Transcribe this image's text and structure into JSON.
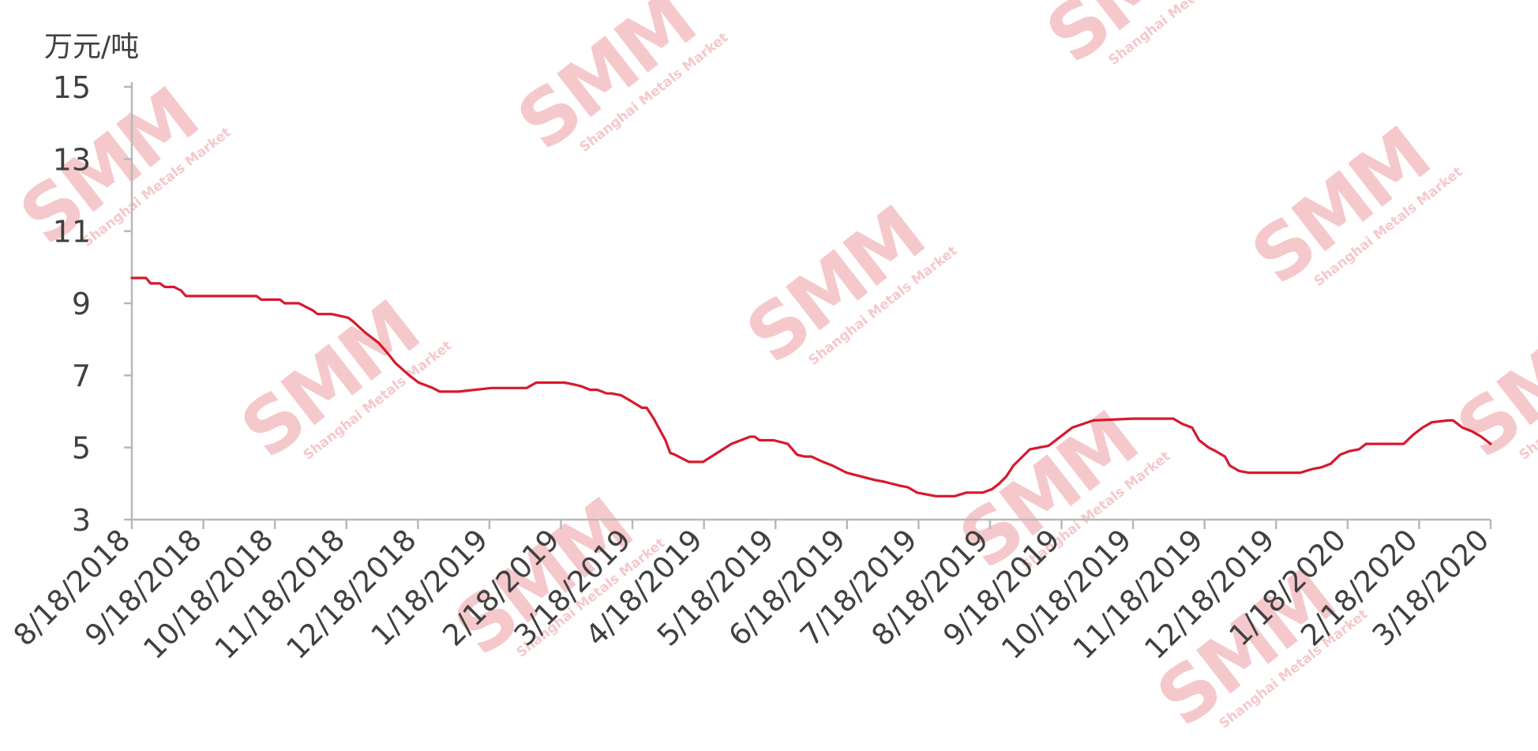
{
  "chart_data": {
    "type": "line",
    "ylabel": "万元/吨",
    "ylim": [
      3,
      15
    ],
    "yticks": [
      3,
      5,
      7,
      9,
      11,
      13,
      15
    ],
    "xlim": [
      "2018-08-18",
      "2020-03-18"
    ],
    "xtick_labels": [
      "8/18/2018",
      "9/18/2018",
      "10/18/2018",
      "11/18/2018",
      "12/18/2018",
      "1/18/2019",
      "2/18/2019",
      "3/18/2019",
      "4/18/2019",
      "5/18/2019",
      "6/18/2019",
      "7/18/2019",
      "8/18/2019",
      "9/18/2019",
      "10/18/2019",
      "11/18/2019",
      "12/18/2019",
      "1/18/2020",
      "2/18/2020",
      "3/18/2020"
    ],
    "grid": false,
    "legend": "none",
    "line_color": "#d7192d",
    "series": [
      {
        "x": [
          "2018-08-18",
          "2018-08-24",
          "2018-08-26",
          "2018-08-30",
          "2018-09-01",
          "2018-09-05",
          "2018-09-08",
          "2018-09-10",
          "2018-10-10",
          "2018-10-12",
          "2018-10-20",
          "2018-10-22",
          "2018-10-28",
          "2018-10-31",
          "2018-11-03",
          "2018-11-05",
          "2018-11-11",
          "2018-11-18",
          "2018-11-20",
          "2018-11-25",
          "2018-12-01",
          "2018-12-05",
          "2018-12-08",
          "2018-12-14",
          "2018-12-18",
          "2018-12-24",
          "2018-12-27",
          "2019-01-04",
          "2019-01-18",
          "2019-02-02",
          "2019-02-06",
          "2019-02-10",
          "2019-02-12",
          "2019-02-18",
          "2019-02-22",
          "2019-02-25",
          "2019-03-01",
          "2019-03-04",
          "2019-03-08",
          "2019-03-10",
          "2019-03-14",
          "2019-03-18",
          "2019-03-23",
          "2019-03-25",
          "2019-03-28",
          "2019-04-02",
          "2019-04-04",
          "2019-04-06",
          "2019-04-12",
          "2019-04-18",
          "2019-04-30",
          "2019-05-08",
          "2019-05-10",
          "2019-05-12",
          "2019-05-18",
          "2019-05-24",
          "2019-05-28",
          "2019-05-31",
          "2019-06-03",
          "2019-06-08",
          "2019-06-12",
          "2019-06-18",
          "2019-06-24",
          "2019-06-30",
          "2019-07-04",
          "2019-07-10",
          "2019-07-14",
          "2019-07-18",
          "2019-07-26",
          "2019-08-03",
          "2019-08-08",
          "2019-08-12",
          "2019-08-15",
          "2019-08-19",
          "2019-08-22",
          "2019-08-25",
          "2019-08-28",
          "2019-09-04",
          "2019-09-08",
          "2019-09-12",
          "2019-09-15",
          "2019-09-18",
          "2019-09-22",
          "2019-10-01",
          "2019-10-18",
          "2019-10-26",
          "2019-10-30",
          "2019-11-04",
          "2019-11-08",
          "2019-11-12",
          "2019-11-15",
          "2019-11-19",
          "2019-11-22",
          "2019-11-26",
          "2019-11-28",
          "2019-12-02",
          "2019-12-06",
          "2019-12-18",
          "2019-12-28",
          "2020-01-02",
          "2020-01-06",
          "2020-01-10",
          "2020-01-14",
          "2020-01-18",
          "2020-01-22",
          "2020-01-25",
          "2020-02-02",
          "2020-02-07",
          "2020-02-10",
          "2020-02-14",
          "2020-02-18",
          "2020-02-22",
          "2020-02-29",
          "2020-03-02",
          "2020-03-06",
          "2020-03-10",
          "2020-03-14",
          "2020-03-18"
        ],
        "y": [
          9.7,
          9.7,
          9.55,
          9.55,
          9.45,
          9.45,
          9.35,
          9.2,
          9.2,
          9.1,
          9.1,
          9.0,
          9.0,
          8.9,
          8.8,
          8.7,
          8.7,
          8.6,
          8.5,
          8.2,
          7.9,
          7.6,
          7.35,
          7.0,
          6.8,
          6.65,
          6.55,
          6.55,
          6.65,
          6.65,
          6.8,
          6.8,
          6.8,
          6.8,
          6.75,
          6.7,
          6.6,
          6.6,
          6.5,
          6.5,
          6.45,
          6.3,
          6.1,
          6.1,
          5.8,
          5.2,
          4.85,
          4.8,
          4.6,
          4.6,
          5.1,
          5.3,
          5.3,
          5.2,
          5.2,
          5.1,
          4.8,
          4.75,
          4.75,
          4.6,
          4.5,
          4.3,
          4.2,
          4.1,
          4.05,
          3.95,
          3.9,
          3.75,
          3.65,
          3.65,
          3.75,
          3.75,
          3.75,
          3.85,
          4.0,
          4.2,
          4.5,
          4.95,
          5.0,
          5.05,
          5.2,
          5.35,
          5.55,
          5.75,
          5.8,
          5.8,
          5.8,
          5.8,
          5.65,
          5.55,
          5.2,
          5.0,
          4.9,
          4.75,
          4.5,
          4.35,
          4.3,
          4.3,
          4.3,
          4.4,
          4.45,
          4.55,
          4.8,
          4.9,
          4.95,
          5.1,
          5.1,
          5.1,
          5.1,
          5.35,
          5.55,
          5.7,
          5.75,
          5.75,
          5.55,
          5.45,
          5.3,
          5.1
        ]
      }
    ]
  }
}
